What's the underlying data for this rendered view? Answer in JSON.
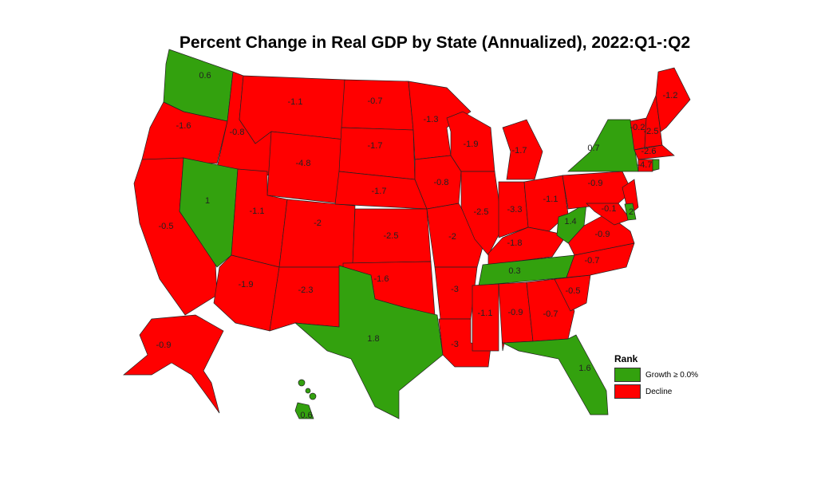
{
  "title": "Percent Change in Real GDP by State (Annualized), 2022:Q1-:Q2",
  "colors": {
    "growth": "#33a10e",
    "decline": "#ff0000"
  },
  "legend": {
    "title": "Rank",
    "items": [
      {
        "label": "Growth ≥ 0.0%",
        "key": "growth"
      },
      {
        "label": "Decline",
        "key": "decline"
      }
    ]
  },
  "chart_data": {
    "type": "choropleth",
    "title": "Percent Change in Real GDP by State (Annualized), 2022:Q1-:Q2",
    "states": {
      "WA": "0.6",
      "OR": "-1.6",
      "ID": "-0.8",
      "MT": "-1.1",
      "WY": "-4.8",
      "CA": "-0.5",
      "NV": "1",
      "UT": "-1.1",
      "CO": "-2",
      "AZ": "-1.9",
      "NM": "-2.3",
      "ND": "-0.7",
      "SD": "-1.7",
      "NE": "-1.7",
      "KS": "-2.5",
      "OK": "-1.6",
      "TX": "1.8",
      "MN": "-1.3",
      "IA": "-0.8",
      "MO": "-2",
      "AR": "-3",
      "LA": "-3",
      "WI": "-1.9",
      "IL": "-2.5",
      "MI": "-1.7",
      "IN": "-3.3",
      "OH": "-1.1",
      "KY": "-1.8",
      "TN": "0.3",
      "MS": "-1.1",
      "AL": "-0.9",
      "GA": "-0.7",
      "FL": "1.6",
      "SC": "-0.5",
      "NC": "-0.7",
      "VA": "-0.9",
      "WV": "1.4",
      "PA": "-0.9",
      "NY": "0.7",
      "NJ": "",
      "MD": "-0.1",
      "DE": "2",
      "VT": "-0.2",
      "NH": "-2.5",
      "ME": "-1.2",
      "MA": "-2.6",
      "CT": "-4.7",
      "RI": "",
      "AK": "-0.9",
      "HI": "0.6"
    },
    "growth_states": [
      "WA",
      "NV",
      "TX",
      "TN",
      "WV",
      "NY",
      "DE",
      "RI",
      "FL",
      "HI"
    ]
  }
}
